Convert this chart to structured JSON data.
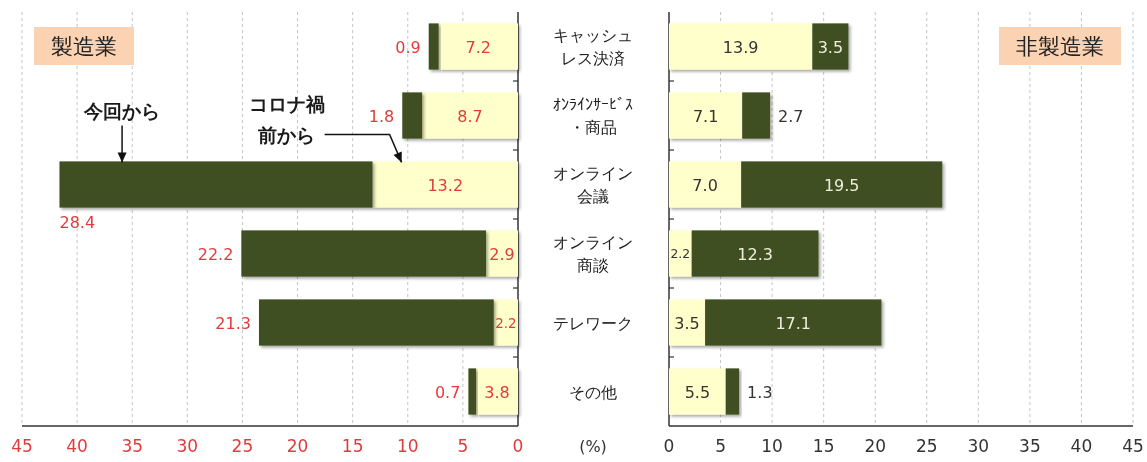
{
  "chart_data": [
    {
      "type": "bar",
      "orientation": "horizontal",
      "stacked": true,
      "title": "製造業",
      "xlabel": "(%)",
      "categories": [
        "キャッシュレス決済",
        "ｵﾝﾗｲﾝｻｰﾋﾞｽ・商品",
        "オンライン会議",
        "オンライン商談",
        "テレワーク",
        "その他"
      ],
      "series": [
        {
          "name": "コロナ禍前から",
          "color": "#ffffcc",
          "values": [
            7.2,
            8.7,
            13.2,
            2.9,
            2.2,
            3.8
          ],
          "value_labels": [
            "7.2",
            "8.7",
            "13.2",
            "2.9",
            "2.2",
            "3.8"
          ]
        },
        {
          "name": "今回から",
          "color": "#3f5022",
          "values": [
            0.9,
            1.8,
            28.4,
            22.2,
            21.3,
            0.7
          ],
          "value_labels": [
            "0.9",
            "1.8",
            "28.4",
            "22.2",
            "21.3",
            "0.7"
          ]
        }
      ],
      "xlim": [
        45,
        0
      ],
      "xticks": [
        45,
        40,
        35,
        30,
        25,
        20,
        15,
        10,
        5,
        0
      ],
      "grid": "x",
      "tick_labels": "x"
    },
    {
      "type": "bar",
      "orientation": "horizontal",
      "stacked": true,
      "title": "非製造業",
      "categories": [
        "キャッシュレス決済",
        "ｵﾝﾗｲﾝｻｰﾋﾞｽ・商品",
        "オンライン会議",
        "オンライン商談",
        "テレワーク",
        "その他"
      ],
      "series": [
        {
          "color": "#ffffcc",
          "values": [
            13.9,
            7.1,
            7.0,
            2.2,
            3.5,
            5.5
          ],
          "value_labels": [
            "13.9",
            "7.1",
            "7.0",
            "2.2",
            "3.5",
            "5.5"
          ]
        },
        {
          "color": "#3f5022",
          "values": [
            3.5,
            2.7,
            19.5,
            12.3,
            17.1,
            1.3
          ],
          "value_labels": [
            "3.5",
            "2.7",
            "19.5",
            "12.3",
            "17.1",
            "1.3"
          ]
        }
      ],
      "xlim": [
        0,
        45
      ],
      "xticks": [
        0,
        5,
        10,
        15,
        20,
        25,
        30,
        35,
        40,
        45
      ],
      "grid": "x"
    }
  ]
}
